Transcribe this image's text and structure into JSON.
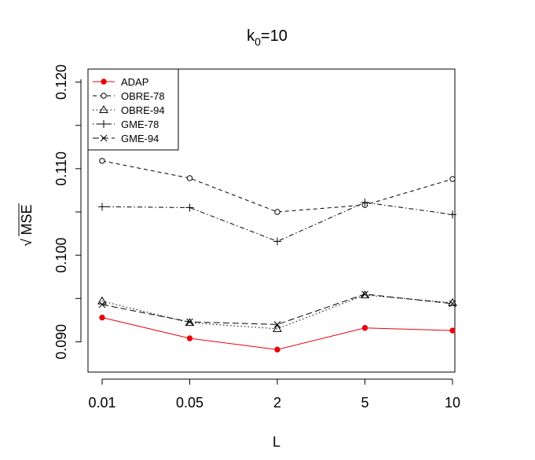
{
  "chart_data": {
    "type": "line",
    "title": "k",
    "title_sub": "0",
    "title_rest": "=10",
    "xlabel": "L",
    "ylabel": "MSE",
    "ylabel_prefix": "√",
    "categories": [
      "0.01",
      "0.05",
      "2",
      "5",
      "10"
    ],
    "ylim": [
      0.0865,
      0.1215
    ],
    "yticks": [
      0.09,
      0.1,
      0.11,
      0.12
    ],
    "ytick_labels": [
      "0.090",
      "0.100",
      "0.110",
      "0.120"
    ],
    "legend_position": "top-left",
    "series": [
      {
        "name": "ADAP",
        "color": "#e8000b",
        "dash": "solid",
        "marker": "filled-circle",
        "values": [
          0.0928,
          0.0904,
          0.0891,
          0.0916,
          0.0913
        ]
      },
      {
        "name": "OBRE-78",
        "color": "#000000",
        "dash": "dashed",
        "marker": "open-circle",
        "values": [
          0.1109,
          0.1089,
          0.105,
          0.1058,
          0.1088
        ]
      },
      {
        "name": "OBRE-94",
        "color": "#000000",
        "dash": "dotted",
        "marker": "triangle",
        "values": [
          0.0947,
          0.0922,
          0.0915,
          0.0954,
          0.0945
        ]
      },
      {
        "name": "GME-78",
        "color": "#000000",
        "dash": "dotdash",
        "marker": "plus",
        "values": [
          0.1056,
          0.1055,
          0.1016,
          0.1061,
          0.1047
        ]
      },
      {
        "name": "GME-94",
        "color": "#000000",
        "dash": "longdash",
        "marker": "cross",
        "values": [
          0.0943,
          0.0923,
          0.092,
          0.0955,
          0.0944
        ]
      }
    ]
  }
}
